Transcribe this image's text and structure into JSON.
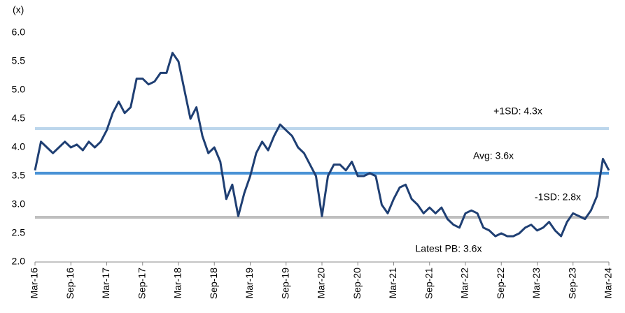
{
  "chart_data": {
    "type": "line",
    "y_label": "(x)",
    "categories": [
      "Mar-16",
      null,
      null,
      null,
      null,
      null,
      "Sep-16",
      null,
      null,
      null,
      null,
      null,
      "Mar-17",
      null,
      null,
      null,
      null,
      null,
      "Sep-17",
      null,
      null,
      null,
      null,
      null,
      "Mar-18",
      null,
      null,
      null,
      null,
      null,
      "Sep-18",
      null,
      null,
      null,
      null,
      null,
      "Mar-19",
      null,
      null,
      null,
      null,
      null,
      "Sep-19",
      null,
      null,
      null,
      null,
      null,
      "Mar-20",
      null,
      null,
      null,
      null,
      null,
      "Sep-20",
      null,
      null,
      null,
      null,
      null,
      "Mar-21",
      null,
      null,
      null,
      null,
      null,
      "Sep-21",
      null,
      null,
      null,
      null,
      null,
      "Mar-22",
      null,
      null,
      null,
      null,
      null,
      "Sep-22",
      null,
      null,
      null,
      null,
      null,
      "Mar-23",
      null,
      null,
      null,
      null,
      null,
      "Sep-23",
      null,
      null,
      null,
      null,
      null,
      "Mar-24"
    ],
    "series": [
      {
        "name": "PB",
        "color": "#1f3f73",
        "values": [
          3.6,
          4.1,
          4.0,
          3.9,
          4.0,
          4.1,
          4.0,
          4.05,
          3.95,
          4.1,
          4.0,
          4.1,
          4.3,
          4.6,
          4.8,
          4.6,
          4.7,
          5.2,
          5.2,
          5.1,
          5.15,
          5.3,
          5.3,
          5.65,
          5.5,
          5.0,
          4.5,
          4.7,
          4.2,
          3.9,
          4.0,
          3.75,
          3.1,
          3.35,
          2.8,
          3.2,
          3.5,
          3.9,
          4.1,
          3.95,
          4.2,
          4.4,
          4.3,
          4.2,
          4.0,
          3.9,
          3.7,
          3.5,
          2.8,
          3.5,
          3.7,
          3.7,
          3.6,
          3.75,
          3.5,
          3.5,
          3.55,
          3.5,
          3.0,
          2.85,
          3.1,
          3.3,
          3.35,
          3.1,
          3.0,
          2.85,
          2.95,
          2.85,
          2.95,
          2.75,
          2.65,
          2.6,
          2.85,
          2.9,
          2.85,
          2.6,
          2.55,
          2.45,
          2.5,
          2.45,
          2.45,
          2.5,
          2.6,
          2.65,
          2.55,
          2.6,
          2.7,
          2.55,
          2.45,
          2.7,
          2.85,
          2.8,
          2.75,
          2.9,
          3.15,
          3.8,
          3.6
        ]
      }
    ],
    "reference_lines": [
      {
        "label": "+1SD: 4.3x",
        "value": 4.33,
        "color": "#bcd6ec"
      },
      {
        "label": "Avg: 3.6x",
        "value": 3.55,
        "color": "#4a93d6"
      },
      {
        "label": "-1SD: 2.8x",
        "value": 2.78,
        "color": "#bfbfbf"
      }
    ],
    "annotation": "Latest PB: 3.6x",
    "ylim": [
      2,
      6
    ],
    "yticks": [
      {
        "value": 2,
        "label": "2.0"
      },
      {
        "value": 2.5,
        "label": "2.5"
      },
      {
        "value": 3,
        "label": "3.0"
      },
      {
        "value": 3.5,
        "label": "3.5"
      },
      {
        "value": 4,
        "label": "4.0"
      },
      {
        "value": 4.5,
        "label": "4.5"
      },
      {
        "value": 5,
        "label": "5.0"
      },
      {
        "value": 5.5,
        "label": "5.5"
      },
      {
        "value": 6,
        "label": "6.0"
      }
    ],
    "grid": false
  }
}
